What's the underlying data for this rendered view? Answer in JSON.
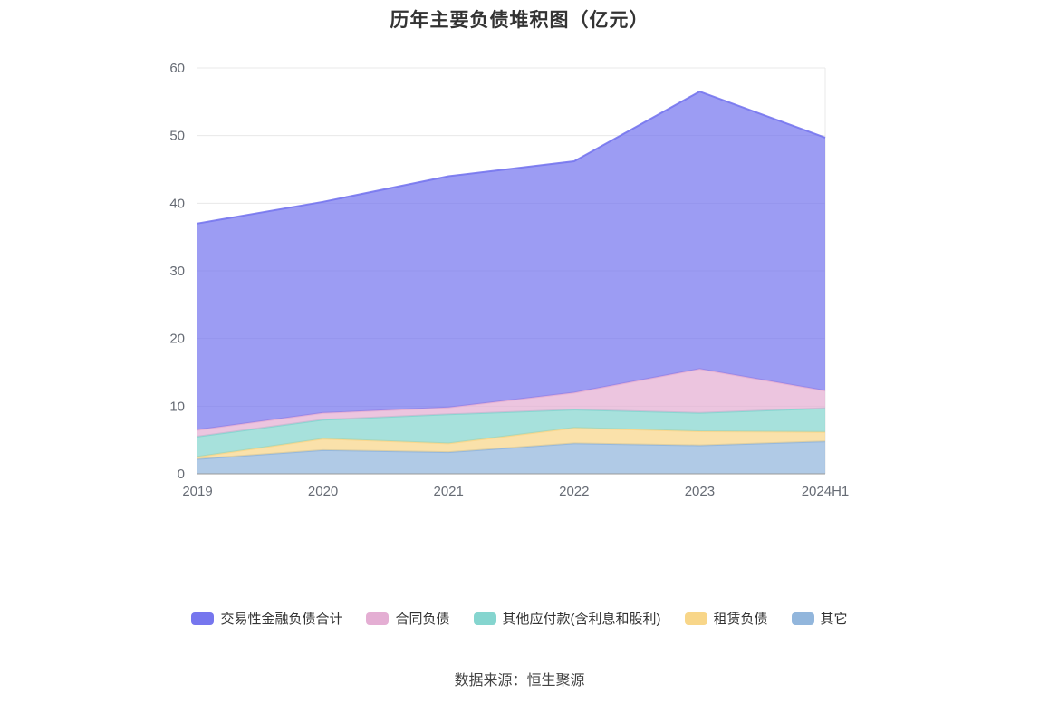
{
  "chart_data": {
    "type": "area",
    "stacked": true,
    "title": "历年主要负债堆积图（亿元）",
    "categories": [
      "2019",
      "2020",
      "2021",
      "2022",
      "2023",
      "2024H1"
    ],
    "series": [
      {
        "name": "交易性金融负债合计",
        "color": "#7676ee",
        "values": [
          30.5,
          31.2,
          34.2,
          34.2,
          41.0,
          37.4
        ]
      },
      {
        "name": "合同负债",
        "color": "#e4aed3",
        "values": [
          1.0,
          1.0,
          1.0,
          2.5,
          6.5,
          2.6
        ]
      },
      {
        "name": "其他应付款(含利息和股利)",
        "color": "#85d5cf",
        "values": [
          3.0,
          2.8,
          4.3,
          2.7,
          2.7,
          3.5
        ]
      },
      {
        "name": "租赁负债",
        "color": "#f8d689",
        "values": [
          0.3,
          1.7,
          1.3,
          2.3,
          2.1,
          1.4
        ]
      },
      {
        "name": "其它",
        "color": "#92b6dc",
        "values": [
          2.2,
          3.5,
          3.2,
          4.5,
          4.2,
          4.8
        ]
      }
    ],
    "ylim": [
      0,
      60
    ],
    "yticks": [
      0,
      10,
      20,
      30,
      40,
      50,
      60
    ],
    "grid": true,
    "legend_position": "bottom",
    "xlabel": "",
    "ylabel": "",
    "grid_color": "#e8e8e8",
    "axis_color": "#999999",
    "area_opacity": 0.72
  },
  "footer": {
    "source": "数据来源：恒生聚源"
  }
}
